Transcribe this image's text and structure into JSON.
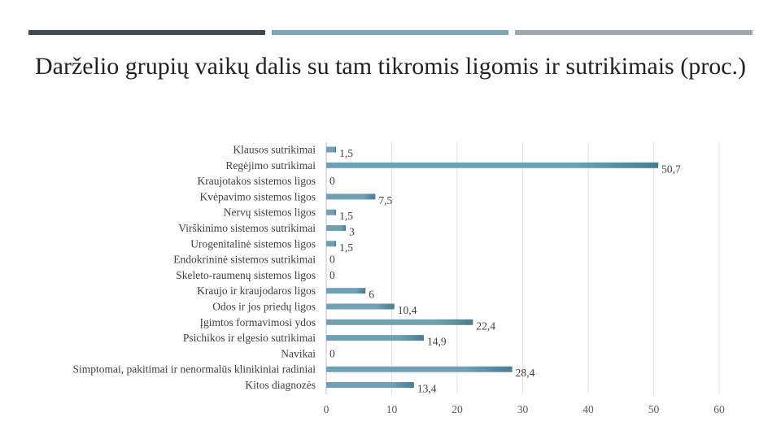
{
  "decor": {
    "colors": [
      "#3f4a4f",
      "#78a8b8",
      "#a0a6aa"
    ]
  },
  "chart_data": {
    "type": "bar",
    "orientation": "horizontal",
    "title": "Darželio grupių vaikų dalis su tam tikromis ligomis ir sutrikimais (proc.)",
    "categories": [
      "Klausos sutrikimai",
      "Regėjimo sutrikimai",
      "Kraujotakos sistemos ligos",
      "Kvėpavimo sistemos ligos",
      "Nervų sistemos ligos",
      "Virškinimo sistemos sutrikimai",
      "Urogenitalinė sistemos ligos",
      "Endokrininė sistemos sutrikimai",
      "Skeleto-raumenų sistemos ligos",
      "Kraujo ir kraujodaros ligos",
      "Odos ir jos priedų ligos",
      "Įgimtos formavimosi ydos",
      "Psichikos ir elgesio sutrikimai",
      "Navikai",
      "Simptomai, pakitimai ir nenormalūs klinikiniai radiniai",
      "Kitos diagnozės"
    ],
    "values": [
      1.5,
      50.7,
      0,
      7.5,
      1.5,
      3,
      1.5,
      0,
      0,
      6,
      10.4,
      22.4,
      14.9,
      0,
      28.4,
      13.4
    ],
    "value_labels": [
      "1,5",
      "50,7",
      "0",
      "7,5",
      "1,5",
      "3",
      "1,5",
      "0",
      "0",
      "6",
      "10,4",
      "22,4",
      "14,9",
      "0",
      "28,4",
      "13,4"
    ],
    "xlim": [
      0,
      60
    ],
    "xticks": [
      "0",
      "10",
      "20",
      "30",
      "40",
      "50",
      "60"
    ],
    "grid": true,
    "bar_color": "#6fa0b3",
    "bar_color_dark": "#4a7d90"
  }
}
